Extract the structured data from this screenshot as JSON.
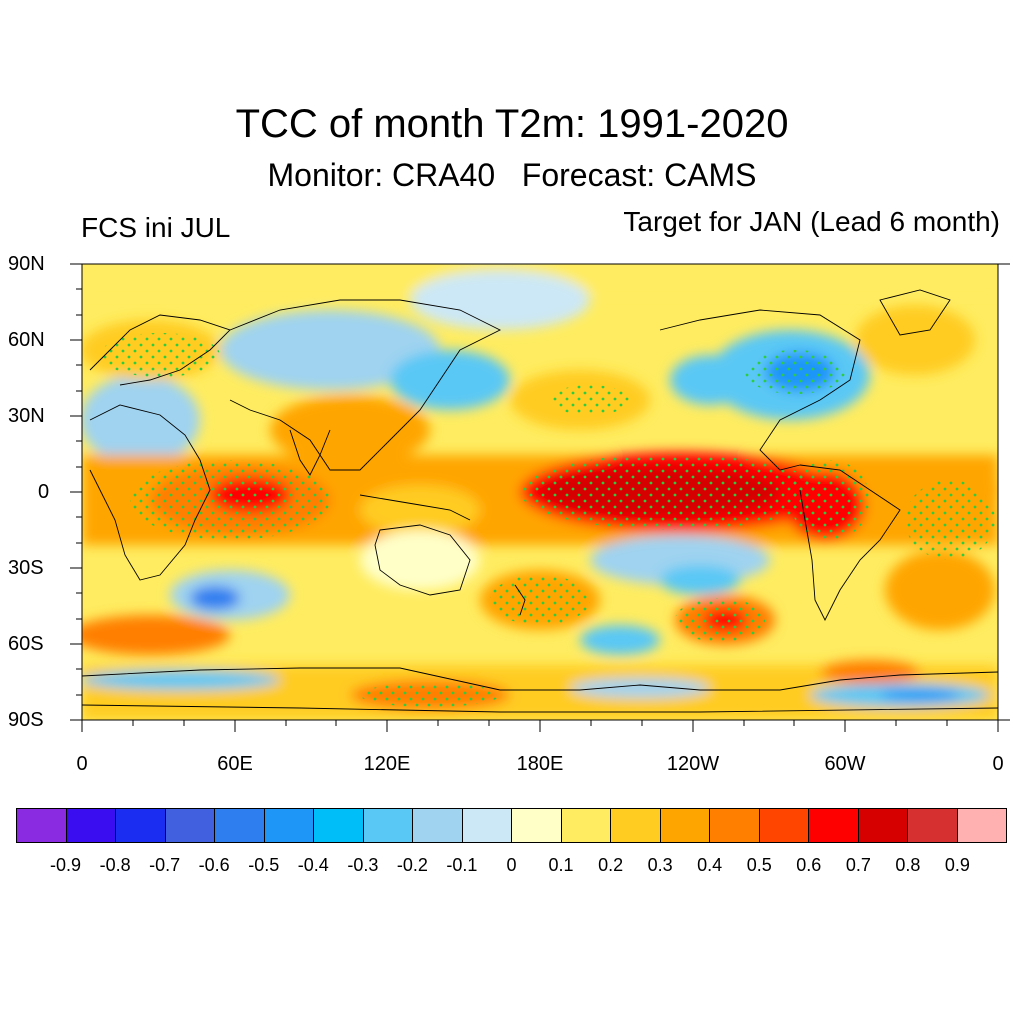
{
  "figure": {
    "title": "TCC of month T2m: 1991-2020",
    "subtitle": "Monitor: CRA40   Forecast: CAMS",
    "left_label": "FCS ini JUL",
    "right_label": "Target for JAN (Lead 6 month)"
  },
  "map": {
    "projection": "cylindrical equidistant",
    "lat_labels": [
      "90N",
      "60N",
      "30N",
      "0",
      "30S",
      "60S",
      "90S"
    ],
    "lon_labels": [
      "0",
      "60E",
      "120E",
      "180E",
      "120W",
      "60W",
      "0"
    ],
    "stipple_color": "#2ecc40",
    "coastline_color": "#000000"
  },
  "colorbar": {
    "colors": [
      "#8a2be2",
      "#3a0df0",
      "#1a2df0",
      "#4060e0",
      "#2e7ef0",
      "#1e96f8",
      "#00bef8",
      "#5ac8f5",
      "#9fd3f0",
      "#cce8f6",
      "#ffffc8",
      "#ffec60",
      "#ffcc22",
      "#ffa500",
      "#ff7f00",
      "#ff4500",
      "#ff0000",
      "#d70000",
      "#d73030",
      "#ffb0b0"
    ],
    "labels": [
      "-0.9",
      "-0.8",
      "-0.7",
      "-0.6",
      "-0.5",
      "-0.4",
      "-0.3",
      "-0.2",
      "-0.1",
      "0",
      "0.1",
      "0.2",
      "0.3",
      "0.4",
      "0.5",
      "0.6",
      "0.7",
      "0.8",
      "0.9"
    ]
  }
}
